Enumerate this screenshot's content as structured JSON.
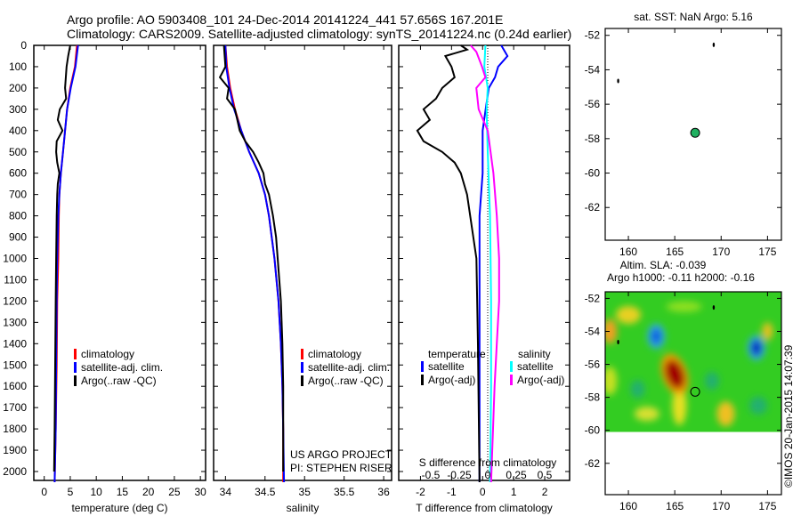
{
  "title_line1": "Argo profile: AO 5903408_101 24-Dec-2014 20141224_441 57.656S 167.201E",
  "title_line2": "Climatology: CARS2009. Satellite-adjusted climatology: synTS_20141224.nc (0.24d earlier)",
  "colors": {
    "climatology": "#ff0000",
    "satellite": "#0000ff",
    "argo": "#000000",
    "sal_satellite": "#00ffff",
    "sal_argo": "#ff00ff"
  },
  "chart_data": [
    {
      "type": "line",
      "name": "temperature",
      "xlabel": "temperature (deg C)",
      "xlim": [
        -2,
        31
      ],
      "xticks": [
        "0",
        "5",
        "10",
        "15",
        "20",
        "25",
        "30"
      ],
      "ylim": [
        2060,
        0
      ],
      "yticks": [
        "0",
        "100",
        "200",
        "300",
        "400",
        "500",
        "600",
        "700",
        "800",
        "900",
        "1000",
        "1100",
        "1200",
        "1300",
        "1400",
        "1500",
        "1600",
        "1700",
        "1800",
        "1900",
        "2000"
      ],
      "legend": [
        "climatology",
        "satellite-adj. clim.",
        "Argo(..raw -QC)"
      ],
      "series": [
        {
          "name": "climatology",
          "color": "#ff0000",
          "depth": [
            0,
            100,
            200,
            300,
            400,
            500,
            600,
            700,
            800,
            1000,
            1200,
            1500,
            1800,
            2050
          ],
          "values": [
            6.3,
            5.9,
            5.0,
            4.4,
            4.0,
            3.6,
            3.2,
            2.9,
            2.8,
            2.7,
            2.5,
            2.4,
            2.2,
            2.0
          ]
        },
        {
          "name": "satellite-adj. clim.",
          "color": "#0000ff",
          "depth": [
            0,
            100,
            200,
            300,
            400,
            500,
            600,
            700,
            800,
            1000,
            1200,
            1500,
            1800,
            2050
          ],
          "values": [
            6.5,
            6.0,
            5.1,
            4.4,
            4.0,
            3.6,
            3.2,
            2.9,
            2.7,
            2.5,
            2.4,
            2.3,
            2.2,
            2.0
          ]
        },
        {
          "name": "Argo(..raw -QC)",
          "color": "#000000",
          "depth": [
            0,
            50,
            100,
            200,
            250,
            300,
            350,
            400,
            450,
            500,
            550,
            600,
            650,
            700,
            800,
            1000,
            1200,
            1500,
            1800,
            2000
          ],
          "values": [
            5.0,
            4.6,
            4.3,
            4.0,
            4.2,
            3.0,
            2.6,
            3.5,
            2.4,
            2.3,
            2.5,
            2.9,
            2.6,
            2.5,
            2.4,
            2.3,
            2.2,
            2.1,
            2.0,
            1.9
          ]
        }
      ]
    },
    {
      "type": "line",
      "name": "salinity",
      "xlabel": "salinity",
      "xlim": [
        33.85,
        36.1
      ],
      "xticks": [
        "34",
        "34.5",
        "35",
        "35.5",
        "36"
      ],
      "ylim": [
        2060,
        0
      ],
      "legend": [
        "climatology",
        "satellite-adj. clim.",
        "Argo(..raw -QC)"
      ],
      "annotation": [
        "US ARGO PROJECT",
        "PI: STEPHEN RISER"
      ],
      "series": [
        {
          "name": "climatology",
          "color": "#ff0000",
          "depth": [
            0,
            100,
            200,
            300,
            400,
            500,
            600,
            700,
            800,
            1000,
            1200,
            1400,
            1600,
            1800,
            2050
          ],
          "values": [
            34.0,
            34.02,
            34.06,
            34.12,
            34.2,
            34.3,
            34.42,
            34.5,
            34.55,
            34.62,
            34.67,
            34.7,
            34.72,
            34.73,
            34.73
          ]
        },
        {
          "name": "satellite-adj. clim.",
          "color": "#0000ff",
          "depth": [
            0,
            100,
            200,
            300,
            400,
            500,
            600,
            700,
            800,
            1000,
            1200,
            1400,
            1600,
            1800,
            2050
          ],
          "values": [
            34.0,
            34.01,
            34.05,
            34.11,
            34.2,
            34.3,
            34.42,
            34.5,
            34.55,
            34.62,
            34.67,
            34.7,
            34.72,
            34.73,
            34.74
          ]
        },
        {
          "name": "Argo(..raw -QC)",
          "color": "#000000",
          "depth": [
            0,
            100,
            150,
            200,
            250,
            300,
            400,
            450,
            500,
            550,
            600,
            650,
            700,
            800,
            900,
            1000,
            1200,
            1400,
            1600,
            1800,
            2000
          ],
          "values": [
            33.98,
            34.0,
            33.93,
            34.04,
            34.02,
            34.12,
            34.18,
            34.25,
            34.35,
            34.42,
            34.48,
            34.5,
            34.55,
            34.6,
            34.64,
            34.66,
            34.7,
            34.72,
            34.73,
            34.73,
            34.73
          ]
        }
      ]
    },
    {
      "type": "line",
      "name": "difference",
      "xlabel": "T difference from climatology",
      "xticks": [
        "-2",
        "-1",
        "0",
        "1",
        "2"
      ],
      "x2label": "S difference from climatology",
      "x2ticks": [
        "-0.5",
        "-0.25",
        "0",
        "0.25",
        "0.5"
      ],
      "xlim": [
        -2.7,
        2.8
      ],
      "ylim": [
        2060,
        0
      ],
      "legend": {
        "temperature_title": "temperature",
        "temperature": [
          "satellite",
          "Argo(-adj)"
        ],
        "salinity_title": "salinity",
        "salinity": [
          "satellite",
          "Argo(-adj)"
        ]
      },
      "series": [
        {
          "name": "T satellite",
          "color": "#0000ff",
          "depth": [
            0,
            50,
            100,
            150,
            200,
            300,
            400,
            600,
            800,
            1200,
            2050
          ],
          "values": [
            0.6,
            0.8,
            0.5,
            0.4,
            0.2,
            0.1,
            0.0,
            0.0,
            -0.1,
            -0.1,
            -0.1
          ]
        },
        {
          "name": "T Argo(-adj)",
          "color": "#000000",
          "depth": [
            0,
            20,
            50,
            100,
            150,
            200,
            250,
            300,
            350,
            400,
            450,
            500,
            550,
            600,
            700,
            800,
            1000,
            1400,
            2050
          ],
          "values": [
            -0.7,
            -0.5,
            -1.2,
            -1.0,
            -0.9,
            -1.3,
            -1.5,
            -1.9,
            -1.7,
            -2.1,
            -1.9,
            -1.3,
            -0.9,
            -0.7,
            -0.5,
            -0.4,
            -0.2,
            -0.15,
            -0.1
          ]
        },
        {
          "name": "S satellite",
          "color": "#00ffff",
          "depth": [
            0,
            100,
            200,
            300,
            500,
            800,
            1200,
            1600,
            2050
          ],
          "values": [
            -0.02,
            -0.03,
            0.0,
            -0.01,
            0.0,
            0.02,
            0.03,
            0.03,
            0.02
          ]
        },
        {
          "name": "S Argo(-adj)",
          "color": "#ff00ff",
          "depth": [
            0,
            30,
            100,
            150,
            200,
            300,
            400,
            600,
            800,
            1000,
            1200,
            1400,
            1600,
            2050
          ],
          "values": [
            -0.15,
            -0.1,
            -0.05,
            -0.02,
            -0.1,
            -0.08,
            0.0,
            0.05,
            0.08,
            0.1,
            0.1,
            0.08,
            0.06,
            0.03
          ]
        }
      ]
    },
    {
      "type": "scatter",
      "name": "sst_map",
      "title": "sat. SST: NaN Argo: 5.16",
      "xlim": [
        157.5,
        176.5
      ],
      "ylim": [
        -63.9,
        -51.6
      ],
      "xticks": [
        "160",
        "165",
        "170",
        "175"
      ],
      "yticks": [
        "-52",
        "-54",
        "-56",
        "-58",
        "-60",
        "-62"
      ],
      "points": [
        {
          "lon": 167.2,
          "lat": -57.66,
          "color": "#20b060"
        }
      ],
      "islands": [
        {
          "lon": 169.2,
          "lat": -52.55
        },
        {
          "lon": 158.9,
          "lat": -54.65
        }
      ]
    },
    {
      "type": "heatmap",
      "name": "sla_map",
      "title_line1": "Altim. SLA: -0.039",
      "title_line2": "Argo h1000: -0.11 h2000: -0.16",
      "xlim": [
        157.5,
        176.5
      ],
      "ylim": [
        -63.9,
        -51.6
      ],
      "xticks": [
        "160",
        "165",
        "170",
        "175"
      ],
      "yticks": [
        "-52",
        "-54",
        "-56",
        "-58",
        "-60",
        "-62"
      ],
      "data_lat_range": [
        -60.1,
        -51.6
      ],
      "features": [
        {
          "lon": 165.0,
          "lat": -56.6,
          "kind": "high",
          "color": "#a00000"
        },
        {
          "lon": 163.0,
          "lat": -54.3,
          "kind": "low",
          "color": "#1060e0"
        },
        {
          "lon": 173.8,
          "lat": -55.0,
          "kind": "low",
          "color": "#0020c0"
        }
      ],
      "points": [
        {
          "lon": 167.2,
          "lat": -57.66
        }
      ],
      "credit": "©IMOS 20-Jan-2015 14:07:39"
    }
  ]
}
